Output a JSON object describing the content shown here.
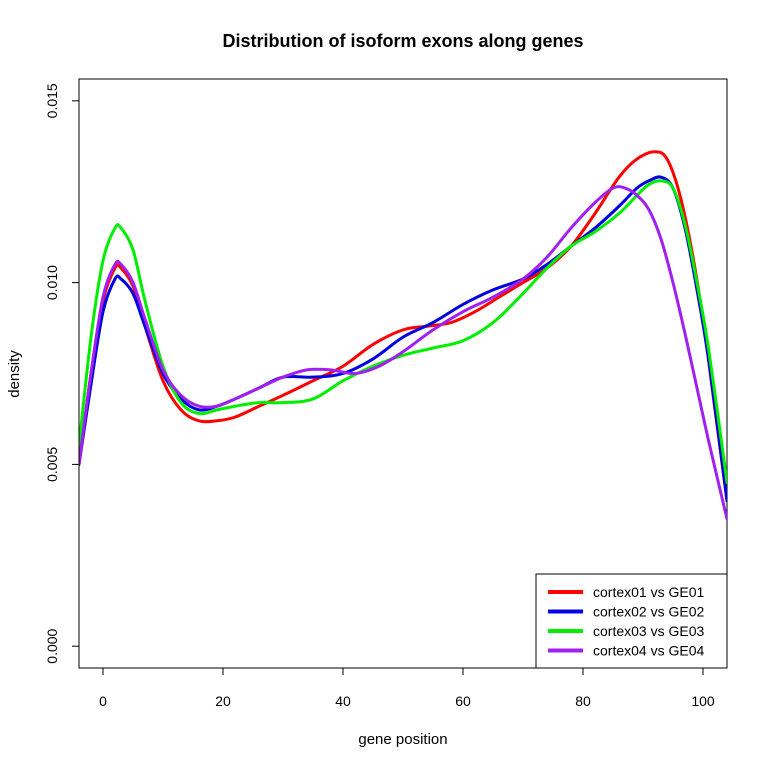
{
  "chart_data": {
    "type": "line",
    "title": "Distribution of isoform exons along genes",
    "xlabel": "gene position",
    "ylabel": "density",
    "xlim": [
      -4,
      104
    ],
    "ylim": [
      -0.0006,
      0.0156
    ],
    "x_ticks": [
      0,
      20,
      40,
      60,
      80,
      100
    ],
    "x_tick_labels": [
      "0",
      "20",
      "40",
      "60",
      "80",
      "100"
    ],
    "y_ticks": [
      0.0,
      0.005,
      0.01,
      0.015
    ],
    "y_tick_labels": [
      "0.000",
      "0.005",
      "0.010",
      "0.015"
    ],
    "grid": false,
    "legend_position": "bottom-right",
    "series": [
      {
        "name": "cortex01 vs GE01",
        "color": "#ff0000",
        "x": [
          -4,
          -2,
          0,
          2,
          3,
          5,
          7,
          10,
          13,
          16,
          19,
          22,
          26,
          30,
          35,
          40,
          45,
          50,
          54,
          58,
          62,
          66,
          70,
          74,
          78,
          82,
          86,
          89,
          92,
          94,
          96,
          98,
          100,
          102,
          104
        ],
        "y": [
          0.005,
          0.0075,
          0.0095,
          0.0104,
          0.0104,
          0.0099,
          0.0088,
          0.0073,
          0.0065,
          0.0062,
          0.0062,
          0.0063,
          0.0066,
          0.0069,
          0.0073,
          0.0077,
          0.0083,
          0.0087,
          0.0088,
          0.0089,
          0.0092,
          0.0096,
          0.01,
          0.0104,
          0.011,
          0.0119,
          0.0129,
          0.0134,
          0.0136,
          0.0134,
          0.0125,
          0.011,
          0.009,
          0.0065,
          0.004
        ]
      },
      {
        "name": "cortex02 vs GE02",
        "color": "#0000e0",
        "x": [
          -4,
          -2,
          0,
          2,
          3,
          5,
          7,
          10,
          13,
          16,
          19,
          22,
          26,
          30,
          35,
          40,
          45,
          50,
          55,
          60,
          65,
          70,
          74,
          78,
          82,
          86,
          89,
          91,
          93,
          95,
          97,
          99,
          101,
          104
        ],
        "y": [
          0.005,
          0.0072,
          0.0092,
          0.0101,
          0.0101,
          0.0097,
          0.0088,
          0.0075,
          0.0068,
          0.0065,
          0.0066,
          0.0068,
          0.0071,
          0.0074,
          0.0074,
          0.0075,
          0.0079,
          0.0085,
          0.0089,
          0.0094,
          0.0098,
          0.0101,
          0.0105,
          0.011,
          0.0115,
          0.0121,
          0.0126,
          0.0128,
          0.0129,
          0.0126,
          0.0115,
          0.0098,
          0.0078,
          0.004
        ]
      },
      {
        "name": "cortex03 vs GE03",
        "color": "#00ee00",
        "x": [
          -4,
          -2,
          0,
          2,
          3,
          5,
          7,
          10,
          13,
          16,
          19,
          22,
          26,
          30,
          35,
          40,
          45,
          50,
          55,
          60,
          65,
          70,
          74,
          78,
          82,
          86,
          89,
          91,
          93,
          95,
          97,
          99,
          101,
          104
        ],
        "y": [
          0.0055,
          0.0085,
          0.0106,
          0.0115,
          0.0115,
          0.0109,
          0.0095,
          0.0077,
          0.0067,
          0.0064,
          0.0065,
          0.0066,
          0.0067,
          0.0067,
          0.0068,
          0.0073,
          0.0077,
          0.008,
          0.0082,
          0.0084,
          0.0089,
          0.0097,
          0.0104,
          0.011,
          0.0114,
          0.0119,
          0.0124,
          0.0127,
          0.0128,
          0.0126,
          0.0116,
          0.01,
          0.0081,
          0.0045
        ]
      },
      {
        "name": "cortex04 vs GE04",
        "color": "#a020f0",
        "x": [
          -4,
          -2,
          0,
          2,
          3,
          5,
          7,
          10,
          13,
          16,
          19,
          22,
          26,
          30,
          34,
          38,
          42,
          46,
          50,
          55,
          60,
          65,
          70,
          74,
          78,
          82,
          85,
          87,
          89,
          91,
          93,
          95,
          97,
          99,
          101,
          104
        ],
        "y": [
          0.005,
          0.0075,
          0.0096,
          0.0105,
          0.0105,
          0.01,
          0.009,
          0.0076,
          0.0069,
          0.0066,
          0.0066,
          0.0068,
          0.0071,
          0.0074,
          0.0076,
          0.0076,
          0.0075,
          0.0077,
          0.0081,
          0.0087,
          0.0092,
          0.0096,
          0.0101,
          0.0107,
          0.0115,
          0.0122,
          0.0126,
          0.0126,
          0.0124,
          0.012,
          0.0112,
          0.01,
          0.0086,
          0.0071,
          0.0056,
          0.0035
        ]
      }
    ]
  }
}
